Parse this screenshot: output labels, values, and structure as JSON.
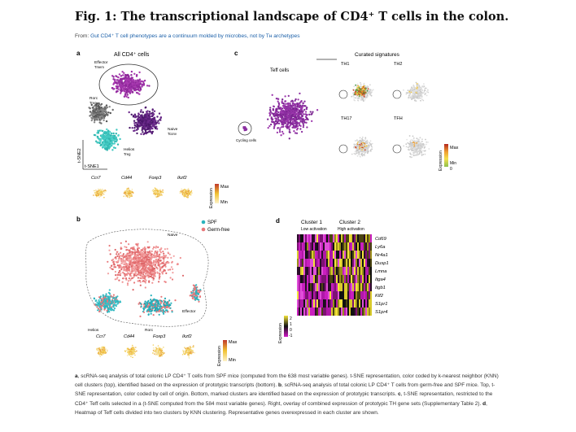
{
  "figure": {
    "title": "Fig. 1: The transcriptional landscape of CD4⁺ T cells in the colon.",
    "from_prefix": "From: ",
    "from_link": "Gut CD4⁺ T cell phenotypes are a continuum molded by microbes, not by Tʜ archetypes"
  },
  "panel_a": {
    "letter": "a",
    "title": "All CD4⁺ cells",
    "axis_y": "t-SNE2",
    "axis_x": "t-SNE1",
    "clusters": [
      {
        "label": "Effector",
        "sub": "Tmem",
        "color": "#9b2fa6"
      },
      {
        "label": "Rorc",
        "sub": "Treg",
        "color": "#6e6e6e"
      },
      {
        "label": "Naive",
        "sub": "Tconv",
        "color": "#5a1f7a"
      },
      {
        "label": "Helios",
        "sub": "Treg",
        "color": "#3fc7c0"
      }
    ],
    "genes": [
      "Ccr7",
      "Cd44",
      "Foxp3",
      "Ikzf2"
    ],
    "legend": {
      "title": "Expression",
      "max": "Max",
      "min": "Min"
    }
  },
  "panel_b": {
    "letter": "b",
    "legend": [
      {
        "label": "SPF",
        "color": "#2ab3bd"
      },
      {
        "label": "Germ-free",
        "color": "#e8787a"
      }
    ],
    "region_labels": [
      "Naive",
      "Helios",
      "Rorc",
      "Effector"
    ],
    "genes": [
      "Ccr7",
      "Cd44",
      "Foxp3",
      "Ikzf2"
    ],
    "legend_expr": {
      "title": "Expression",
      "max": "Max",
      "min": "Min"
    }
  },
  "panel_c": {
    "letter": "c",
    "main_title": "Teff cells",
    "cycling": "Cycling cells",
    "curated_title": "Curated signatures",
    "small_titles": [
      "TH1",
      "TH2",
      "TH17",
      "TFH"
    ],
    "legend": {
      "title": "Expression",
      "max": "Max",
      "mid": "Min",
      "zero": "0"
    }
  },
  "panel_d": {
    "letter": "d",
    "clusters": [
      {
        "name": "Cluster 1",
        "desc": "Low activation"
      },
      {
        "name": "Cluster 2",
        "desc": "High activation"
      }
    ],
    "genes": [
      "Cd69",
      "Ly6a",
      "Nr4a1",
      "Dusp1",
      "Lmna",
      "Itga4",
      "Itgb1",
      "Klf2",
      "S1pr1",
      "S1pr4"
    ],
    "legend": {
      "title": "Expression",
      "ticks": [
        "2",
        "1",
        "0",
        "-1"
      ]
    }
  },
  "caption": {
    "a_label": "a",
    "a_text": ", scRNA-seq analysis of total colonic LP CD4⁺ T cells from SPF mice (computed from the 638 most variable genes). t-SNE representation, color coded by k-nearest neighbor (KNN) cell clusters (top), identified based on the expression of prototypic transcripts (bottom). ",
    "b_label": "b",
    "b_text": ", scRNA-seq analysis of total colonic LP CD4⁺ T cells from germ-free and SPF mice. Top, t-SNE representation, color coded by cell of origin. Bottom, marked clusters are identified based on the expression of prototypic transcripts. ",
    "c_label": "c",
    "c_text": ", t-SNE representation, restricted to the CD4⁺ Teff cells selected in a (t-SNE computed from the 584 most variable genes). Right, overlay of combined expression of prototypic TH gene sets (Supplementary Table 2). ",
    "d_label": "d",
    "d_text": ", Heatmap of Teff cells divided into two clusters by KNN clustering. Representative genes overexpressed in each cluster are shown."
  }
}
